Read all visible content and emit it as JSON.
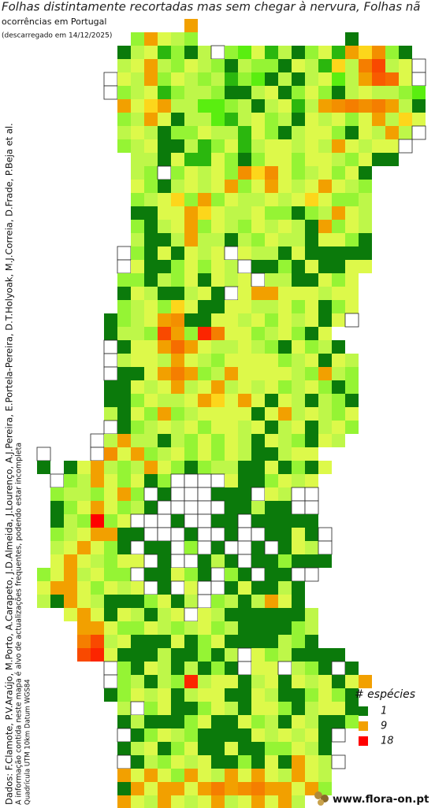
{
  "header": {
    "title": "Folhas distintamente recortadas mas sem chegar à nervura, Folhas nã",
    "subtitle": "ocorrências em Portugal",
    "download": "(descarregado em 14/12/2025)"
  },
  "credits": {
    "data": "Dados: F.Clamote, P.V.Araújo, M.Porto, A.Carapeto, J.D.Almeida, J.Lourenço, A.J.Pereira, E.Portela-Pereira, D.T.Holyoak, M.J.Correia, D.Frade, P.Beja et al.",
    "note": "A informação contida neste mapa é alvo de actualizações frequentes, podendo estar incompleta",
    "grid": "Quadrícula UTM 10km Datum WGS84"
  },
  "legend": {
    "title": "# espécies",
    "items": [
      {
        "value": 1,
        "color": "#0b7a0b"
      },
      {
        "value": 9,
        "color": "#f2a000"
      },
      {
        "value": 18,
        "color": "#ff0000"
      }
    ]
  },
  "logo": "www.flora-on.pt",
  "map": {
    "grid": [
      [
        null,
        null,
        null,
        null,
        null,
        null,
        null,
        null,
        null,
        null,
        null,
        9
      ],
      [
        null,
        null,
        null,
        null,
        null,
        null,
        null,
        4,
        9,
        6,
        5,
        4,
        null,
        null,
        null,
        null,
        null,
        null,
        null,
        null,
        null,
        null,
        null,
        1
      ],
      [
        null,
        null,
        null,
        null,
        null,
        null,
        1,
        5,
        6,
        2,
        4,
        1,
        5,
        0,
        4,
        3,
        6,
        2,
        5,
        1,
        4,
        6,
        2,
        9,
        8,
        10,
        4,
        1
      ],
      [
        null,
        null,
        null,
        null,
        null,
        null,
        5,
        6,
        9,
        5,
        4,
        6,
        5,
        4,
        1,
        5,
        4,
        4,
        1,
        6,
        5,
        2,
        8,
        5,
        11,
        14,
        5,
        6,
        0
      ],
      [
        null,
        null,
        null,
        null,
        null,
        0,
        6,
        5,
        9,
        4,
        6,
        5,
        4,
        5,
        2,
        4,
        3,
        1,
        5,
        1,
        5,
        6,
        3,
        5,
        9,
        13,
        12,
        6,
        0
      ],
      [
        null,
        null,
        null,
        null,
        null,
        0,
        4,
        5,
        6,
        2,
        4,
        5,
        5,
        4,
        1,
        1,
        5,
        6,
        1,
        4,
        6,
        4,
        1,
        5,
        6,
        5,
        5,
        4,
        3
      ],
      [
        null,
        null,
        null,
        null,
        null,
        null,
        9,
        6,
        8,
        9,
        5,
        5,
        3,
        3,
        4,
        5,
        1,
        5,
        6,
        2,
        5,
        9,
        10,
        11,
        10,
        11,
        9,
        5,
        1
      ],
      [
        null,
        null,
        null,
        null,
        null,
        null,
        4,
        5,
        9,
        6,
        1,
        5,
        5,
        3,
        2,
        5,
        6,
        4,
        5,
        1,
        6,
        5,
        6,
        4,
        6,
        9,
        5,
        8,
        6
      ],
      [
        null,
        null,
        null,
        null,
        null,
        null,
        5,
        6,
        5,
        1,
        4,
        4,
        6,
        5,
        5,
        2,
        6,
        4,
        1,
        5,
        6,
        6,
        4,
        1,
        6,
        5,
        9,
        5,
        0
      ],
      [
        null,
        null,
        null,
        null,
        null,
        null,
        4,
        5,
        6,
        1,
        1,
        5,
        2,
        4,
        6,
        2,
        5,
        6,
        6,
        5,
        6,
        5,
        9,
        6,
        5,
        6,
        6,
        0
      ],
      [
        null,
        null,
        null,
        null,
        null,
        null,
        null,
        5,
        5,
        1,
        6,
        2,
        2,
        6,
        4,
        1,
        4,
        6,
        6,
        4,
        6,
        6,
        5,
        4,
        6,
        1,
        1
      ],
      [
        null,
        null,
        null,
        null,
        null,
        null,
        null,
        5,
        4,
        0,
        4,
        6,
        5,
        6,
        4,
        10,
        8,
        10,
        6,
        4,
        5,
        6,
        4,
        6,
        1
      ],
      [
        null,
        null,
        null,
        null,
        null,
        null,
        null,
        6,
        4,
        1,
        5,
        6,
        5,
        6,
        9,
        4,
        6,
        9,
        6,
        5,
        6,
        9,
        6,
        5,
        4
      ],
      [
        null,
        null,
        null,
        null,
        null,
        null,
        null,
        4,
        5,
        6,
        8,
        4,
        9,
        4,
        6,
        5,
        5,
        6,
        5,
        6,
        8,
        6,
        4,
        4,
        5
      ],
      [
        null,
        null,
        null,
        null,
        null,
        null,
        null,
        1,
        1,
        6,
        6,
        9,
        8,
        6,
        5,
        5,
        6,
        4,
        4,
        1,
        4,
        5,
        9,
        6,
        5
      ],
      [
        null,
        null,
        null,
        null,
        null,
        null,
        null,
        4,
        1,
        5,
        6,
        9,
        4,
        6,
        5,
        4,
        6,
        5,
        6,
        5,
        1,
        9,
        4,
        6,
        5
      ],
      [
        null,
        null,
        null,
        null,
        null,
        null,
        null,
        5,
        1,
        1,
        5,
        9,
        5,
        5,
        1,
        5,
        4,
        6,
        5,
        5,
        1,
        6,
        6,
        4,
        1
      ],
      [
        null,
        null,
        null,
        null,
        null,
        null,
        0,
        4,
        1,
        6,
        1,
        6,
        5,
        6,
        0,
        6,
        5,
        5,
        1,
        6,
        1,
        1,
        1,
        1,
        1
      ],
      [
        null,
        null,
        null,
        null,
        null,
        null,
        0,
        6,
        1,
        1,
        4,
        6,
        4,
        6,
        5,
        0,
        1,
        1,
        4,
        1,
        6,
        1,
        1,
        6,
        6
      ],
      [
        null,
        null,
        null,
        null,
        null,
        null,
        4,
        4,
        1,
        5,
        4,
        6,
        1,
        6,
        5,
        6,
        0,
        5,
        5,
        1,
        1,
        6,
        4,
        6
      ],
      [
        null,
        null,
        null,
        null,
        null,
        null,
        1,
        6,
        5,
        1,
        1,
        5,
        6,
        1,
        0,
        6,
        9,
        9,
        6,
        6,
        6,
        5,
        6,
        6
      ],
      [
        null,
        null,
        null,
        null,
        null,
        null,
        4,
        5,
        6,
        4,
        8,
        6,
        1,
        1,
        6,
        6,
        5,
        5,
        6,
        4,
        6,
        1,
        4,
        6
      ],
      [
        null,
        null,
        null,
        null,
        null,
        1,
        4,
        5,
        6,
        9,
        10,
        1,
        1,
        6,
        6,
        5,
        6,
        4,
        6,
        5,
        6,
        1,
        6,
        0
      ],
      [
        null,
        null,
        null,
        null,
        null,
        1,
        5,
        5,
        4,
        14,
        9,
        4,
        16,
        11,
        6,
        6,
        4,
        5,
        6,
        4,
        1,
        6
      ],
      [
        null,
        null,
        null,
        null,
        null,
        0,
        1,
        6,
        6,
        9,
        12,
        9,
        6,
        5,
        5,
        6,
        5,
        4,
        1,
        6,
        4,
        5,
        1
      ],
      [
        null,
        null,
        null,
        null,
        null,
        0,
        5,
        6,
        6,
        5,
        9,
        6,
        5,
        4,
        6,
        6,
        6,
        6,
        4,
        5,
        6,
        1,
        6,
        5
      ],
      [
        null,
        null,
        null,
        null,
        null,
        0,
        1,
        1,
        6,
        9,
        11,
        9,
        4,
        5,
        9,
        6,
        6,
        6,
        6,
        5,
        4,
        9,
        5,
        4
      ],
      [
        null,
        null,
        null,
        null,
        null,
        1,
        1,
        6,
        5,
        6,
        9,
        5,
        6,
        9,
        5,
        6,
        5,
        6,
        4,
        5,
        6,
        4,
        1,
        4
      ],
      [
        null,
        null,
        null,
        null,
        null,
        1,
        1,
        4,
        6,
        5,
        5,
        6,
        9,
        8,
        6,
        9,
        6,
        1,
        6,
        5,
        1,
        5,
        4,
        1
      ],
      [
        null,
        null,
        null,
        null,
        null,
        5,
        1,
        6,
        4,
        9,
        4,
        5,
        6,
        6,
        6,
        6,
        1,
        6,
        9,
        5,
        6,
        5,
        4,
        6
      ],
      [
        null,
        null,
        null,
        null,
        null,
        0,
        1,
        4,
        5,
        6,
        5,
        6,
        4,
        6,
        6,
        5,
        6,
        1,
        5,
        6,
        1,
        5,
        6,
        4
      ],
      [
        null,
        null,
        null,
        null,
        0,
        5,
        9,
        5,
        5,
        1,
        5,
        4,
        6,
        4,
        6,
        5,
        1,
        6,
        5,
        4,
        1,
        6,
        5
      ],
      [
        0,
        null,
        null,
        null,
        0,
        10,
        6,
        9,
        4,
        5,
        6,
        4,
        6,
        4,
        6,
        5,
        1,
        1,
        5,
        6,
        6
      ],
      [
        1,
        null,
        1,
        6,
        9,
        5,
        4,
        5,
        9,
        6,
        4,
        1,
        4,
        5,
        5,
        1,
        1,
        6,
        1,
        4,
        1,
        6
      ],
      [
        null,
        0,
        4,
        5,
        9,
        6,
        4,
        6,
        1,
        4,
        0,
        0,
        0,
        0,
        6,
        1,
        1,
        4,
        6,
        5,
        6
      ],
      [
        null,
        4,
        5,
        5,
        4,
        6,
        9,
        4,
        0,
        1,
        0,
        0,
        0,
        1,
        1,
        1,
        0,
        6,
        5,
        0,
        0
      ],
      [
        null,
        1,
        4,
        6,
        9,
        6,
        4,
        5,
        1,
        0,
        0,
        0,
        0,
        0,
        1,
        1,
        5,
        1,
        1,
        0,
        0
      ],
      [
        null,
        1,
        5,
        4,
        18,
        4,
        6,
        0,
        0,
        0,
        1,
        0,
        0,
        1,
        1,
        0,
        1,
        1,
        1,
        1,
        1
      ],
      [
        null,
        4,
        5,
        6,
        9,
        9,
        1,
        1,
        0,
        0,
        0,
        1,
        0,
        0,
        1,
        0,
        0,
        1,
        1,
        6,
        1,
        0
      ],
      [
        null,
        5,
        6,
        9,
        6,
        4,
        1,
        0,
        1,
        1,
        0,
        4,
        0,
        1,
        0,
        0,
        1,
        0,
        1,
        6,
        5,
        0
      ],
      [
        null,
        6,
        9,
        6,
        5,
        4,
        6,
        6,
        0,
        1,
        0,
        0,
        1,
        5,
        1,
        0,
        1,
        1,
        4,
        1,
        1,
        1
      ],
      [
        4,
        6,
        9,
        5,
        6,
        4,
        4,
        0,
        1,
        1,
        6,
        4,
        1,
        0,
        4,
        1,
        0,
        1,
        1,
        0,
        0
      ],
      [
        6,
        9,
        9,
        6,
        4,
        6,
        5,
        6,
        0,
        1,
        0,
        6,
        0,
        0,
        1,
        6,
        1,
        1,
        5,
        1
      ],
      [
        5,
        1,
        9,
        6,
        5,
        1,
        1,
        1,
        4,
        6,
        1,
        5,
        0,
        4,
        5,
        1,
        5,
        9,
        6,
        1
      ],
      [
        null,
        null,
        6,
        9,
        6,
        1,
        6,
        5,
        1,
        5,
        6,
        0,
        6,
        5,
        1,
        1,
        1,
        1,
        1,
        1,
        5
      ],
      [
        null,
        null,
        null,
        9,
        9,
        6,
        4,
        4,
        6,
        5,
        4,
        5,
        6,
        4,
        5,
        1,
        1,
        1,
        1,
        4,
        5
      ],
      [
        null,
        null,
        null,
        11,
        14,
        5,
        6,
        1,
        1,
        1,
        6,
        1,
        4,
        6,
        1,
        1,
        1,
        1,
        5,
        4,
        1
      ],
      [
        null,
        null,
        null,
        14,
        16,
        6,
        1,
        1,
        1,
        5,
        1,
        1,
        4,
        1,
        5,
        0,
        6,
        4,
        5,
        1,
        1,
        1,
        1
      ],
      [
        null,
        null,
        null,
        null,
        null,
        0,
        4,
        1,
        6,
        5,
        1,
        5,
        1,
        4,
        1,
        0,
        6,
        6,
        0,
        5,
        4,
        1,
        0,
        1
      ],
      [
        null,
        null,
        null,
        null,
        null,
        0,
        4,
        5,
        1,
        5,
        4,
        16,
        5,
        6,
        6,
        1,
        5,
        6,
        1,
        6,
        5,
        6,
        1,
        6,
        9
      ],
      [
        null,
        null,
        null,
        null,
        null,
        1,
        4,
        6,
        5,
        6,
        1,
        5,
        6,
        6,
        1,
        1,
        6,
        5,
        1,
        1,
        4,
        6,
        4,
        1
      ],
      [
        null,
        null,
        null,
        null,
        null,
        null,
        5,
        0,
        4,
        6,
        1,
        1,
        4,
        6,
        5,
        1,
        6,
        6,
        4,
        1,
        5,
        6,
        6,
        1
      ],
      [
        null,
        null,
        null,
        null,
        null,
        null,
        1,
        5,
        1,
        1,
        1,
        4,
        6,
        1,
        1,
        6,
        4,
        5,
        1,
        6,
        5,
        1,
        1,
        4
      ],
      [
        null,
        null,
        null,
        null,
        null,
        null,
        0,
        1,
        4,
        6,
        5,
        4,
        1,
        1,
        1,
        1,
        6,
        5,
        6,
        5,
        6,
        1,
        0
      ],
      [
        null,
        null,
        null,
        null,
        null,
        null,
        1,
        5,
        6,
        1,
        4,
        6,
        1,
        1,
        6,
        1,
        1,
        4,
        4,
        6,
        5,
        1
      ],
      [
        null,
        null,
        null,
        null,
        null,
        null,
        0,
        1,
        5,
        4,
        6,
        5,
        6,
        1,
        1,
        4,
        1,
        6,
        1,
        9,
        6,
        5,
        0
      ],
      [
        null,
        null,
        null,
        null,
        null,
        null,
        9,
        6,
        9,
        6,
        4,
        9,
        6,
        5,
        9,
        6,
        9,
        6,
        5,
        9,
        6,
        5
      ],
      [
        null,
        null,
        null,
        null,
        null,
        null,
        1,
        9,
        6,
        9,
        9,
        6,
        9,
        11,
        9,
        10,
        11,
        9,
        9,
        6,
        9,
        4
      ],
      [
        null,
        null,
        null,
        null,
        null,
        null,
        9,
        6,
        5,
        9,
        6,
        5,
        6,
        9,
        5,
        6,
        9,
        6,
        9,
        5
      ]
    ]
  }
}
